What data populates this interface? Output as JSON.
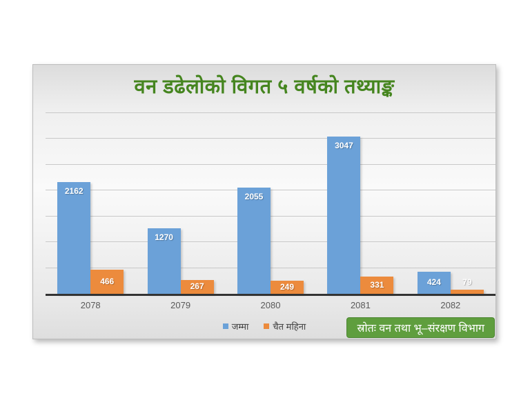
{
  "chart_data": {
    "type": "bar",
    "title": "वन डढेलोको विगत ५ वर्षको तथ्याङ्क",
    "categories": [
      "2078",
      "2079",
      "2080",
      "2081",
      "2082"
    ],
    "series": [
      {
        "name": "जम्मा",
        "color": "#6BA1D8",
        "values": [
          2162,
          1270,
          2055,
          3047,
          424
        ]
      },
      {
        "name": "चैत महिना",
        "color": "#EC8B3D",
        "values": [
          466,
          267,
          249,
          331,
          79
        ]
      }
    ],
    "ylim": [
      0,
      3500
    ],
    "grid_step": 500,
    "grid": true,
    "y_axis_labels_visible": false,
    "legend_position": "bottom-center",
    "data_labels": true,
    "data_label_color": "#ffffff"
  },
  "source_box": {
    "text": "स्रोतः वन तथा भू–संरक्षण विभाग",
    "background": "#5F9E3E",
    "text_color": "#ffffff"
  },
  "colors": {
    "title": "#45851F",
    "axis_line": "#333333",
    "gridline": "#c8c8c8",
    "x_labels": "#595959"
  }
}
